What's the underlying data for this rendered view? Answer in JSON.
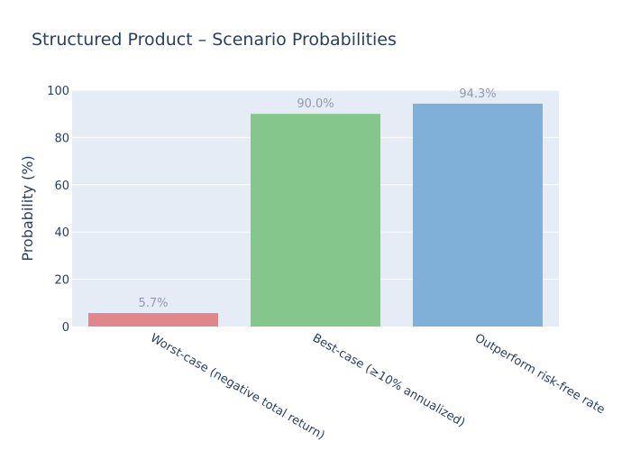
{
  "chart_data": {
    "type": "bar",
    "title": "Structured Product – Scenario Probabilities",
    "xlabel": "",
    "ylabel": "Probability (%)",
    "ylim": [
      0,
      100
    ],
    "yticks": [
      0,
      20,
      40,
      60,
      80,
      100
    ],
    "grid": true,
    "legend": "none",
    "categories": [
      "Worst-case (negative total return)",
      "Best-case (≥10% annualized)",
      "Outperform risk-free rate"
    ],
    "values": [
      5.7,
      90.0,
      94.3
    ],
    "data_labels": [
      "5.7%",
      "90.0%",
      "94.3%"
    ],
    "colors": [
      "#e0868d",
      "#85c68c",
      "#80b0d7"
    ],
    "plot_background": "#e5ecf6",
    "text_color": "#2a3f5f",
    "label_color": "#8e9bb0"
  }
}
